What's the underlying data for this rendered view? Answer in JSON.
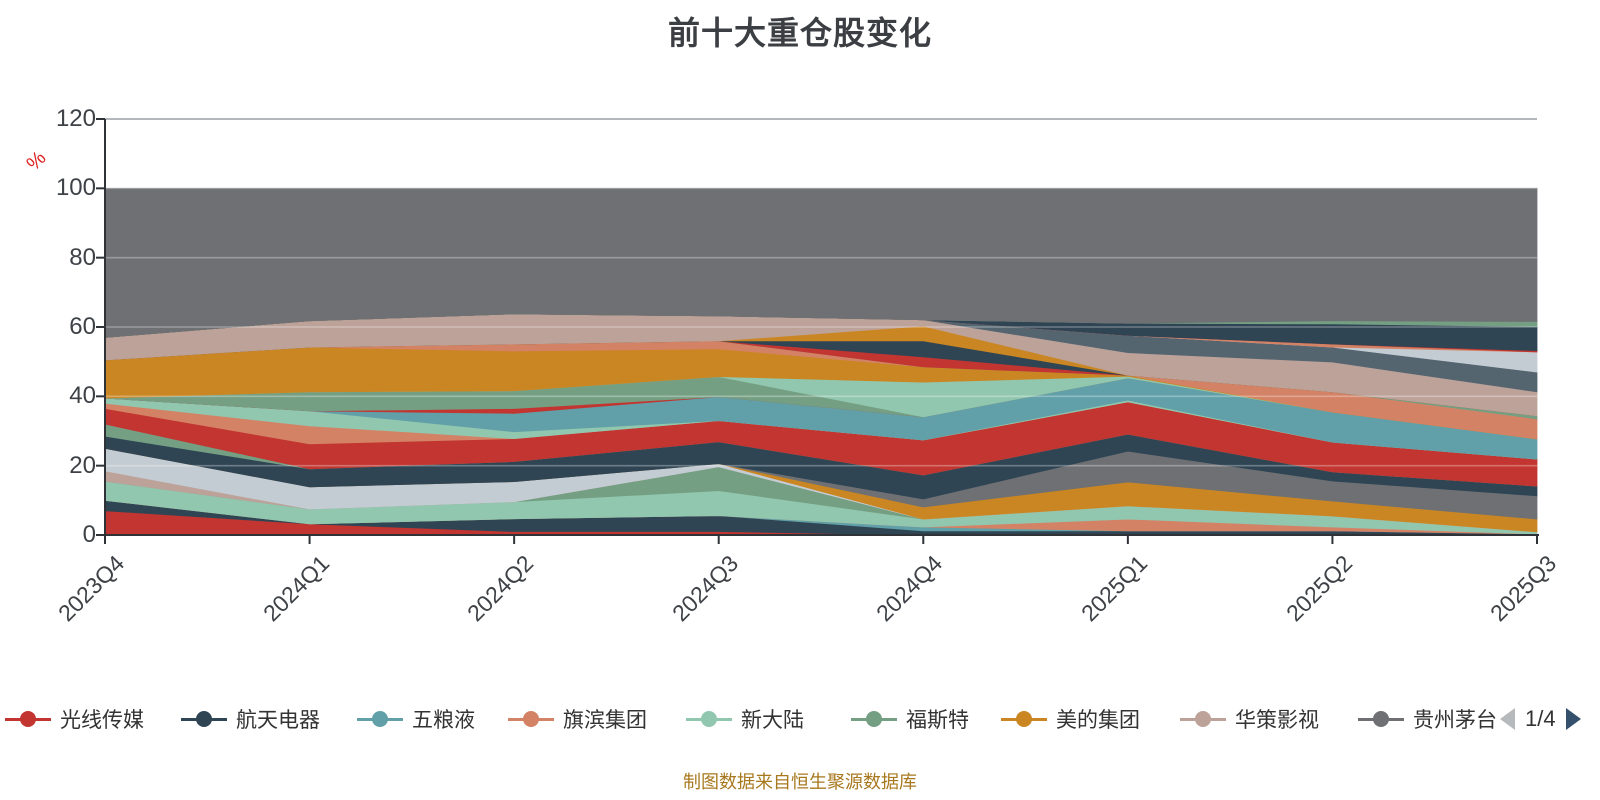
{
  "title": "前十大重仓股变化",
  "footer": "制图数据来自恒生聚源数据库",
  "y_axis": {
    "unit": "%",
    "ticks": [
      0,
      20,
      40,
      60,
      80,
      100,
      120
    ],
    "max": 120
  },
  "legend": {
    "items": [
      {
        "label": "光线传媒",
        "color": "#c23531"
      },
      {
        "label": "航天电器",
        "color": "#2f4554"
      },
      {
        "label": "五粮液",
        "color": "#61a0a8"
      },
      {
        "label": "旗滨集团",
        "color": "#d48265"
      },
      {
        "label": "新大陆",
        "color": "#91c7ae"
      },
      {
        "label": "福斯特",
        "color": "#749f83"
      },
      {
        "label": "美的集团",
        "color": "#ca8622"
      },
      {
        "label": "华策影视",
        "color": "#bda29a"
      },
      {
        "label": "贵州茅台",
        "color": "#6e7074"
      }
    ],
    "pagination": {
      "current": "1/4"
    }
  },
  "chart_data": {
    "type": "area",
    "stacked": true,
    "grid": true,
    "ylabel": "%",
    "ylim": [
      0,
      120
    ],
    "categories": [
      "2023Q4",
      "2024Q1",
      "2024Q2",
      "2024Q3",
      "2024Q4",
      "2025Q1",
      "2025Q2",
      "2025Q3"
    ],
    "series": [
      {
        "name": "band-red-low",
        "color": "#c23531",
        "values": [
          7,
          3.2,
          1,
          1,
          0,
          0,
          0,
          0.3
        ]
      },
      {
        "name": "band-navy-low",
        "color": "#2f4554",
        "values": [
          3,
          0,
          3.7,
          4.6,
          1.2,
          1.2,
          1.2,
          0
        ]
      },
      {
        "name": "band-teal-low",
        "color": "#61a0a8",
        "values": [
          0,
          0,
          0,
          0,
          1.1,
          0,
          0,
          0
        ]
      },
      {
        "name": "band-salmon-low",
        "color": "#d48265",
        "values": [
          0,
          0,
          0,
          0,
          0,
          3.4,
          1.1,
          0
        ]
      },
      {
        "name": "band-mint-low",
        "color": "#91c7ae",
        "values": [
          5.5,
          4.3,
          4.9,
          7.2,
          2.3,
          3.8,
          3.2,
          0.6
        ]
      },
      {
        "name": "band-sage-low",
        "color": "#749f83",
        "values": [
          0,
          0,
          0,
          6.9,
          0,
          0,
          0,
          0
        ]
      },
      {
        "name": "band-pink-low",
        "color": "#bda29a",
        "values": [
          3,
          0,
          0,
          0,
          0,
          0,
          0,
          0
        ]
      },
      {
        "name": "band-paleblue-low",
        "color": "#c4ccd3",
        "values": [
          6.5,
          6.4,
          5.8,
          0.9,
          0,
          0,
          0,
          0
        ]
      },
      {
        "name": "band-amber-low",
        "color": "#ca8622",
        "values": [
          0,
          0,
          0,
          0,
          3.5,
          6.9,
          4.3,
          3.7
        ]
      },
      {
        "name": "band-gray-low",
        "color": "#6e7074",
        "values": [
          0,
          0,
          0,
          0,
          2.3,
          8.9,
          5.8,
          6.7
        ]
      },
      {
        "name": "band-navy-mid",
        "color": "#2f4554",
        "values": [
          3.5,
          5.2,
          5.8,
          6.3,
          6.9,
          4.9,
          2.6,
          2.8
        ]
      },
      {
        "name": "band-sage-mid-1",
        "color": "#749f83",
        "values": [
          3.5,
          0,
          0,
          0,
          0,
          0,
          0,
          0
        ]
      },
      {
        "name": "band-red-mid",
        "color": "#c23531",
        "values": [
          4.5,
          7.2,
          6.6,
          6.1,
          10.1,
          9.3,
          8.6,
          7.8
        ]
      },
      {
        "name": "band-salmon-mid",
        "color": "#d48265",
        "values": [
          1.5,
          5.2,
          0,
          0,
          0,
          0,
          0,
          0
        ]
      },
      {
        "name": "band-mint-mid",
        "color": "#91c7ae",
        "values": [
          1.5,
          4.3,
          2.0,
          0,
          0,
          0.5,
          0,
          0
        ]
      },
      {
        "name": "band-teal-mid",
        "color": "#61a0a8",
        "values": [
          0,
          0,
          5.3,
          6.9,
          6.7,
          6.4,
          8.7,
          5.8
        ]
      },
      {
        "name": "band-red-sliver",
        "color": "#c23531",
        "values": [
          0,
          0,
          1.4,
          0,
          0,
          0,
          0,
          0
        ]
      },
      {
        "name": "band-sage-mid-2",
        "color": "#749f83",
        "values": [
          0,
          5.5,
          5.1,
          5.8,
          0,
          0,
          0,
          0
        ]
      },
      {
        "name": "band-mint-upper",
        "color": "#91c7ae",
        "values": [
          0,
          0,
          0,
          0,
          10.0,
          0.5,
          0,
          0
        ]
      },
      {
        "name": "band-amber-main",
        "color": "#ca8622",
        "values": [
          11,
          12.9,
          11.5,
          8.0,
          4.4,
          0.3,
          0,
          0
        ]
      },
      {
        "name": "band-salmon-upper",
        "color": "#d48265",
        "values": [
          0,
          0,
          2.0,
          2.3,
          0,
          0,
          5.8,
          5.8
        ]
      },
      {
        "name": "band-sage-sliver",
        "color": "#749f83",
        "values": [
          0,
          0,
          0,
          0,
          0,
          0,
          0,
          0.9
        ]
      },
      {
        "name": "band-red-upper",
        "color": "#c23531",
        "values": [
          0,
          0,
          0,
          0,
          2.9,
          0,
          0,
          0
        ]
      },
      {
        "name": "band-navy-upper",
        "color": "#2f4554",
        "values": [
          0,
          0,
          0,
          0,
          4.6,
          0,
          0,
          0
        ]
      },
      {
        "name": "band-amber-upper",
        "color": "#ca8622",
        "values": [
          0,
          0,
          0,
          0,
          4.3,
          0,
          0,
          0
        ]
      },
      {
        "name": "band-pink-main",
        "color": "#bda29a",
        "values": [
          6.5,
          7.6,
          8.7,
          7.2,
          1.8,
          6.5,
          8.6,
          6.9
        ]
      },
      {
        "name": "band-slate-top",
        "color": "#546570",
        "values": [
          0,
          0,
          0,
          0,
          0,
          5.0,
          4.3,
          5.7
        ]
      },
      {
        "name": "band-paleblue-top",
        "color": "#c4ccd3",
        "values": [
          0,
          0,
          0,
          0,
          0,
          0,
          0,
          5.8
        ]
      },
      {
        "name": "band-salmon-top",
        "color": "#d48265",
        "values": [
          0,
          0,
          0,
          0,
          0,
          0,
          0.9,
          0
        ]
      },
      {
        "name": "band-red-top",
        "color": "#c23531",
        "values": [
          0,
          0,
          0,
          0,
          0,
          0,
          0,
          0.4
        ]
      },
      {
        "name": "band-navy-top",
        "color": "#2f4554",
        "values": [
          0,
          0,
          0,
          0,
          0,
          3.5,
          5.8,
          6.9
        ]
      },
      {
        "name": "band-sage-top",
        "color": "#749f83",
        "values": [
          0,
          0,
          0,
          0,
          0,
          0,
          0.9,
          1.5
        ]
      },
      {
        "name": "band-gray-top",
        "color": "#6e7074",
        "values": [
          43,
          38.2,
          36.2,
          36.8,
          37.9,
          38.9,
          38.2,
          38.4
        ]
      }
    ]
  },
  "colors": {
    "axis": "#2f3338",
    "tick_label": "#3e4247",
    "grid_top_line": "#b4b7bb",
    "unit_label": "#e02020",
    "footer_text": "#a8781e",
    "pager_left_arrow": "#b7babd",
    "pager_right_arrow": "#35506c"
  }
}
